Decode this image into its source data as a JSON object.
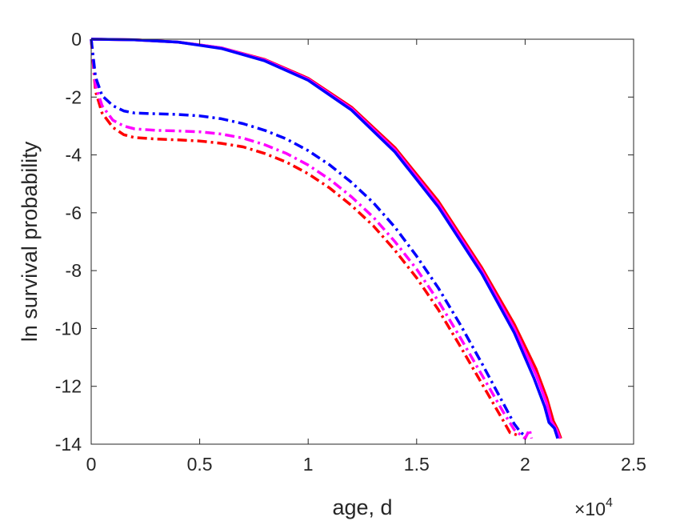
{
  "chart_data": {
    "type": "line",
    "title": "",
    "xlabel": "age, d",
    "ylabel": "ln survival probability",
    "x_exponent_label": "×10",
    "x_exponent_power": "4",
    "xlim": [
      0,
      25000
    ],
    "ylim": [
      -14,
      0
    ],
    "x_ticks": [
      0,
      5000,
      10000,
      15000,
      20000,
      25000
    ],
    "x_tick_labels": [
      "0",
      "0.5",
      "1",
      "1.5",
      "2",
      "2.5"
    ],
    "y_ticks": [
      0,
      -2,
      -4,
      -6,
      -8,
      -10,
      -12,
      -14
    ],
    "y_tick_labels": [
      "0",
      "-2",
      "-4",
      "-6",
      "-8",
      "-10",
      "-12",
      "-14"
    ],
    "grid": false,
    "legend": "none",
    "series": [
      {
        "color": "#ff0000",
        "style": "solid",
        "points": [
          [
            0,
            0
          ],
          [
            2000,
            -0.02
          ],
          [
            4000,
            -0.1
          ],
          [
            6000,
            -0.3
          ],
          [
            8000,
            -0.7
          ],
          [
            10000,
            -1.35
          ],
          [
            12000,
            -2.35
          ],
          [
            14000,
            -3.75
          ],
          [
            16000,
            -5.6
          ],
          [
            18000,
            -7.9
          ],
          [
            19500,
            -9.85
          ],
          [
            20500,
            -11.4
          ],
          [
            21000,
            -12.4
          ],
          [
            21300,
            -13.2
          ],
          [
            21500,
            -13.5
          ],
          [
            21650,
            -13.8
          ]
        ]
      },
      {
        "color": "#ff00ff",
        "style": "solid",
        "points": [
          [
            0,
            0
          ],
          [
            2000,
            -0.02
          ],
          [
            4000,
            -0.1
          ],
          [
            6000,
            -0.3
          ],
          [
            8000,
            -0.72
          ],
          [
            10000,
            -1.38
          ],
          [
            12000,
            -2.4
          ],
          [
            14000,
            -3.82
          ],
          [
            16000,
            -5.7
          ],
          [
            18000,
            -8.0
          ],
          [
            19500,
            -10.0
          ],
          [
            20500,
            -11.6
          ],
          [
            21000,
            -12.6
          ],
          [
            21200,
            -13.2
          ],
          [
            21450,
            -13.5
          ],
          [
            21600,
            -13.8
          ]
        ]
      },
      {
        "color": "#0000ff",
        "style": "solid",
        "points": [
          [
            0,
            0
          ],
          [
            2000,
            -0.02
          ],
          [
            4000,
            -0.1
          ],
          [
            6000,
            -0.32
          ],
          [
            8000,
            -0.75
          ],
          [
            10000,
            -1.42
          ],
          [
            12000,
            -2.45
          ],
          [
            14000,
            -3.9
          ],
          [
            16000,
            -5.8
          ],
          [
            18000,
            -8.1
          ],
          [
            19500,
            -10.15
          ],
          [
            20400,
            -11.7
          ],
          [
            20900,
            -12.7
          ],
          [
            21100,
            -13.25
          ],
          [
            21350,
            -13.45
          ],
          [
            21500,
            -13.8
          ]
        ]
      },
      {
        "color": "#ff0000",
        "style": "dashdot",
        "points": [
          [
            0,
            0
          ],
          [
            200,
            -1.8
          ],
          [
            500,
            -2.55
          ],
          [
            1000,
            -3.05
          ],
          [
            1500,
            -3.3
          ],
          [
            2000,
            -3.4
          ],
          [
            3000,
            -3.45
          ],
          [
            4000,
            -3.48
          ],
          [
            5000,
            -3.52
          ],
          [
            6000,
            -3.6
          ],
          [
            7000,
            -3.72
          ],
          [
            8000,
            -3.95
          ],
          [
            9000,
            -4.25
          ],
          [
            10000,
            -4.65
          ],
          [
            11000,
            -5.15
          ],
          [
            12000,
            -5.75
          ],
          [
            13000,
            -6.45
          ],
          [
            14000,
            -7.3
          ],
          [
            15000,
            -8.25
          ],
          [
            16000,
            -9.35
          ],
          [
            17000,
            -10.6
          ],
          [
            18000,
            -11.9
          ],
          [
            19000,
            -13.2
          ],
          [
            19300,
            -13.6
          ],
          [
            19700,
            -13.7
          ]
        ]
      },
      {
        "color": "#ff00ff",
        "style": "dashdot",
        "points": [
          [
            0,
            0
          ],
          [
            200,
            -1.6
          ],
          [
            500,
            -2.3
          ],
          [
            1000,
            -2.8
          ],
          [
            1500,
            -3.0
          ],
          [
            2000,
            -3.1
          ],
          [
            3000,
            -3.15
          ],
          [
            4000,
            -3.17
          ],
          [
            5000,
            -3.2
          ],
          [
            6000,
            -3.28
          ],
          [
            7000,
            -3.42
          ],
          [
            8000,
            -3.65
          ],
          [
            9000,
            -3.95
          ],
          [
            10000,
            -4.35
          ],
          [
            11000,
            -4.85
          ],
          [
            12000,
            -5.45
          ],
          [
            13000,
            -6.15
          ],
          [
            14000,
            -7.0
          ],
          [
            15000,
            -7.95
          ],
          [
            16000,
            -9.05
          ],
          [
            17000,
            -10.3
          ],
          [
            18000,
            -11.6
          ],
          [
            19000,
            -12.9
          ],
          [
            19500,
            -13.5
          ],
          [
            20000,
            -13.8
          ],
          [
            20200,
            -13.5
          ],
          [
            20300,
            -13.8
          ]
        ]
      },
      {
        "color": "#0000ff",
        "style": "dashdot",
        "points": [
          [
            0,
            0
          ],
          [
            200,
            -1.3
          ],
          [
            500,
            -1.95
          ],
          [
            1000,
            -2.3
          ],
          [
            1500,
            -2.48
          ],
          [
            2000,
            -2.55
          ],
          [
            3000,
            -2.58
          ],
          [
            4000,
            -2.6
          ],
          [
            5000,
            -2.65
          ],
          [
            6000,
            -2.75
          ],
          [
            7000,
            -2.92
          ],
          [
            8000,
            -3.15
          ],
          [
            9000,
            -3.45
          ],
          [
            10000,
            -3.85
          ],
          [
            11000,
            -4.35
          ],
          [
            12000,
            -4.95
          ],
          [
            13000,
            -5.65
          ],
          [
            14000,
            -6.5
          ],
          [
            15000,
            -7.5
          ],
          [
            16000,
            -8.6
          ],
          [
            17000,
            -9.85
          ],
          [
            18000,
            -11.2
          ],
          [
            19000,
            -12.6
          ],
          [
            19500,
            -13.3
          ],
          [
            19800,
            -13.6
          ],
          [
            20000,
            -13.7
          ]
        ]
      }
    ]
  }
}
